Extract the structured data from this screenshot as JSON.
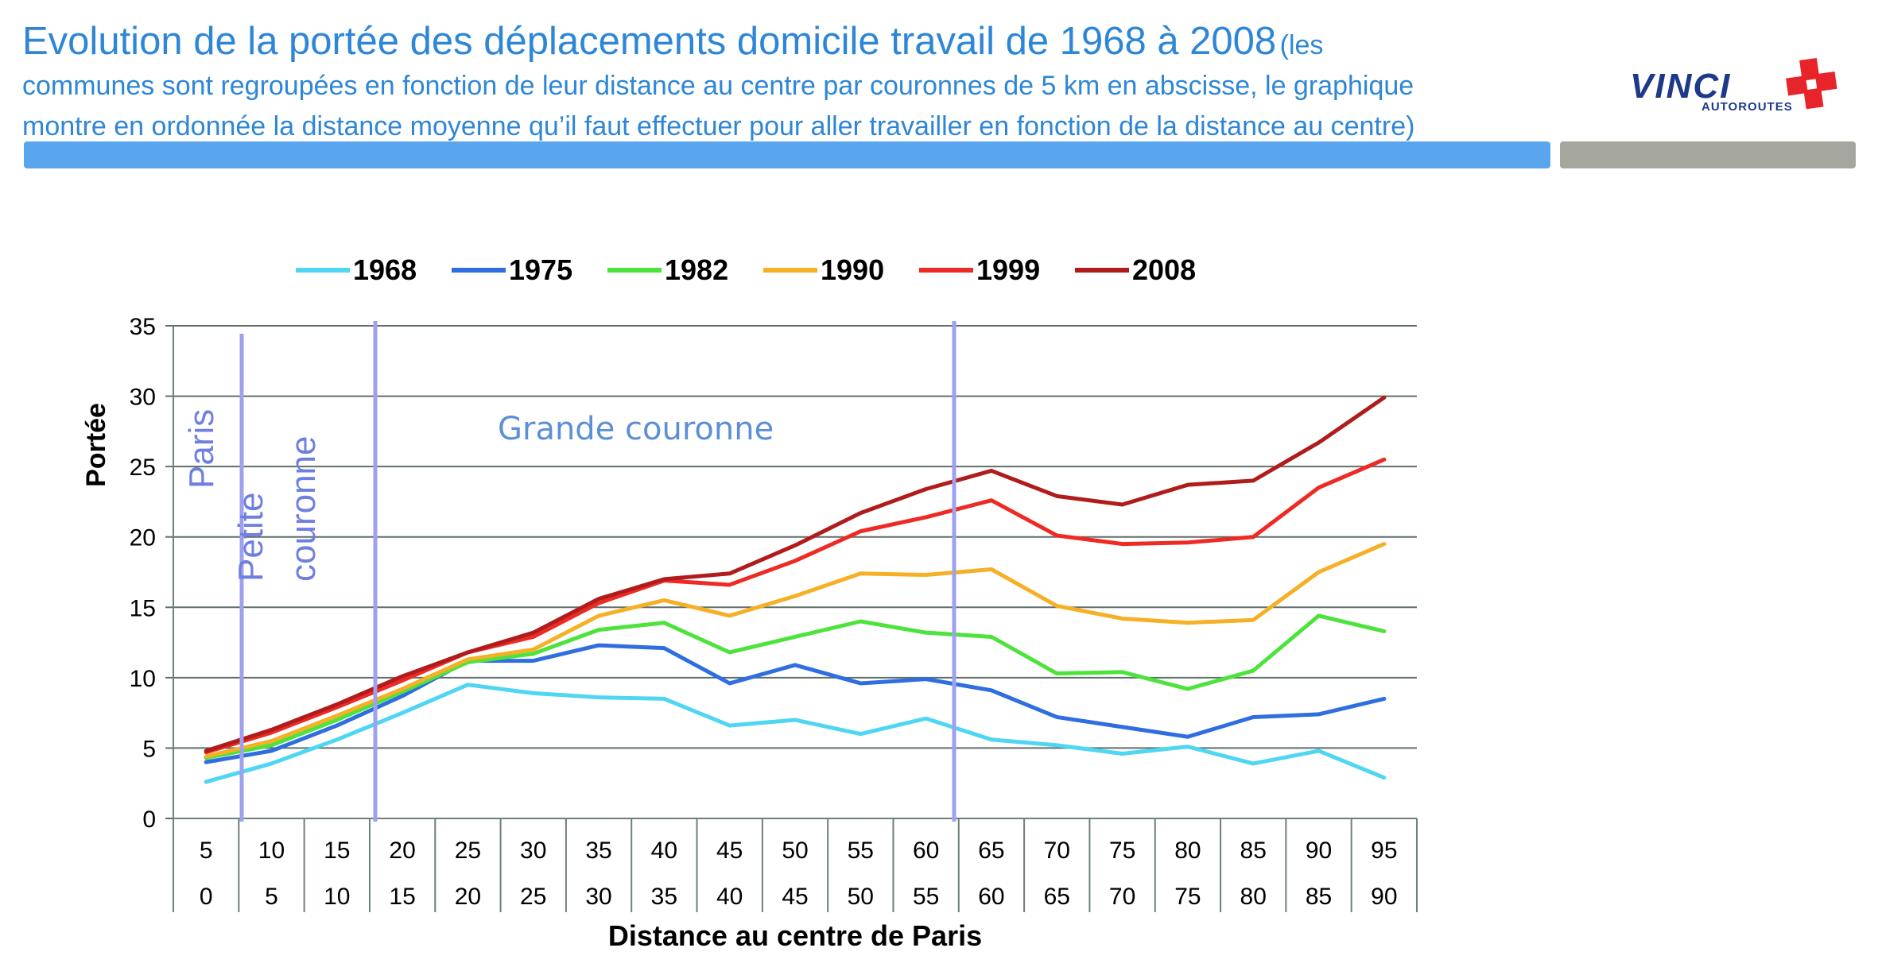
{
  "header": {
    "title": "Evolution de la portée des déplacements domicile travail de 1968 à 2008",
    "note_line1": "(les",
    "note_line2": "communes sont regroupées en fonction de leur distance au centre par couronnes de 5 km en abscisse, le graphique",
    "note_line3": "montre en ordonnée la distance moyenne qu’il faut effectuer pour aller travailler en fonction de la distance au centre)"
  },
  "logo": {
    "word": "VINCI",
    "sub": "AUTOROUTES",
    "colors": {
      "word": "#1d3a8a",
      "cross": "#e8242b"
    }
  },
  "colors": {
    "accent_bar": "#5aa6ee",
    "gray_bar": "#a5a69d",
    "title": "#2e86d6",
    "divider": "#9ea0f0",
    "zone_text": "#6f7fe0"
  },
  "chart_data": {
    "type": "line",
    "ylabel": "Portée",
    "xlabel": "Distance au centre de Paris",
    "ylim": [
      0,
      35
    ],
    "yticks": [
      0,
      5,
      10,
      15,
      20,
      25,
      30,
      35
    ],
    "grid": true,
    "legend_position": "top",
    "categories_top": [
      "5",
      "10",
      "15",
      "20",
      "25",
      "30",
      "35",
      "40",
      "45",
      "50",
      "55",
      "60",
      "65",
      "70",
      "75",
      "80",
      "85",
      "90",
      "95"
    ],
    "categories_bottom": [
      "0",
      "5",
      "10",
      "15",
      "20",
      "25",
      "30",
      "35",
      "40",
      "45",
      "50",
      "55",
      "60",
      "65",
      "70",
      "75",
      "80",
      "85",
      "90"
    ],
    "series": [
      {
        "name": "1968",
        "color": "#4fd6f2",
        "values": [
          2.6,
          3.9,
          5.6,
          7.5,
          9.5,
          8.9,
          8.6,
          8.5,
          6.6,
          7.0,
          6.0,
          7.1,
          5.6,
          5.2,
          4.6,
          5.1,
          3.9,
          4.8,
          2.9
        ]
      },
      {
        "name": "1975",
        "color": "#2e6ee0",
        "values": [
          4.0,
          4.8,
          6.6,
          8.7,
          11.2,
          11.2,
          12.3,
          12.1,
          9.6,
          10.9,
          9.6,
          9.9,
          9.1,
          7.2,
          6.5,
          5.8,
          7.2,
          7.4,
          8.5
        ]
      },
      {
        "name": "1982",
        "color": "#4de33c",
        "values": [
          4.3,
          5.2,
          7.0,
          9.0,
          11.1,
          11.7,
          13.4,
          13.9,
          11.8,
          12.9,
          14.0,
          13.2,
          12.9,
          10.3,
          10.4,
          9.2,
          10.5,
          14.4,
          13.3
        ]
      },
      {
        "name": "1990",
        "color": "#f5b026",
        "values": [
          4.4,
          5.5,
          7.3,
          9.2,
          11.3,
          12.0,
          14.4,
          15.5,
          14.4,
          15.8,
          17.4,
          17.3,
          17.7,
          15.1,
          14.2,
          13.9,
          14.1,
          17.5,
          19.5
        ]
      },
      {
        "name": "1999",
        "color": "#ee2a24",
        "values": [
          4.7,
          6.1,
          7.9,
          9.8,
          11.8,
          12.9,
          15.3,
          16.9,
          16.6,
          18.3,
          20.4,
          21.4,
          22.6,
          20.1,
          19.5,
          19.6,
          20.0,
          23.5,
          25.5
        ]
      },
      {
        "name": "2008",
        "color": "#b01c1c",
        "values": [
          4.8,
          6.3,
          8.1,
          10.1,
          11.8,
          13.2,
          15.6,
          17.0,
          17.4,
          19.4,
          21.7,
          23.4,
          24.7,
          22.9,
          22.3,
          23.7,
          24.0,
          26.7,
          29.9
        ]
      }
    ],
    "zones": [
      {
        "label": "Paris"
      },
      {
        "label_line1": "Petite",
        "label_line2": "couronne"
      },
      {
        "label": "Grande couronne"
      }
    ]
  }
}
